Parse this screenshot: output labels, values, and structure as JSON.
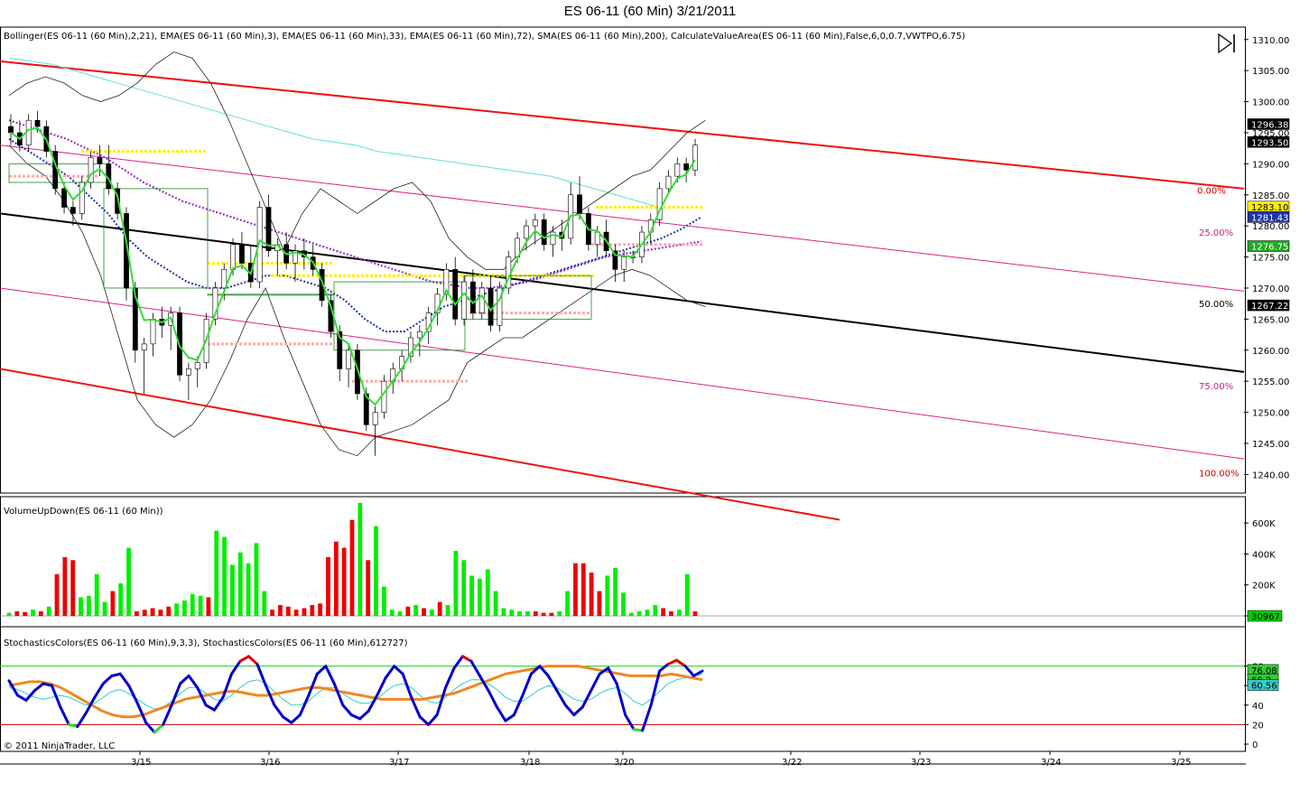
{
  "window": {
    "title": "ES 06-11 (60 Min)  3/21/2011"
  },
  "panels": {
    "price": {
      "indicator_label": "Bollinger(ES 06-11 (60 Min),2,21), EMA(ES 06-11 (60 Min),3), EMA(ES 06-11 (60 Min),33), EMA(ES 06-11 (60 Min),72), SMA(ES 06-11 (60 Min),200), CalculateValueArea(ES 06-11 (60 Min),False,6,0,0.7,VWTPO,6.75)"
    },
    "volume": {
      "indicator_label": "VolumeUpDown(ES 06-11 (60 Min))"
    },
    "stochastics": {
      "indicator_label": "StochasticsColors(ES 06-11 (60 Min),9,3,3), StochasticsColors(ES 06-11 (60 Min),612727)"
    }
  },
  "copyright": "© 2011 NinjaTrader, LLC",
  "colors": {
    "up": "#00ee00",
    "down": "#ee0000",
    "channel": "#ee1111",
    "midline": "#000000",
    "quarter": "#dd2288",
    "bollinger": "#222222",
    "sma200": "#66dddd",
    "ema72": "#9933cc",
    "ema33": "#2233aa",
    "ema3": "#33dd33",
    "value_area": "#ffee00",
    "poc": "#ffaaaa",
    "stoch_k": "#0000cc",
    "stoch_slow": "#ee8822",
    "stoch_d": "#33cccc"
  },
  "chart_data": [
    {
      "type": "candlestick",
      "panel": "price",
      "ylim": [
        1237,
        1312
      ],
      "y_ticks": [
        1310,
        1305,
        1300,
        1295,
        1290,
        1285,
        1280,
        1275,
        1270,
        1265,
        1260,
        1255,
        1250,
        1245,
        1240
      ],
      "x_ticks": [
        "3/15",
        "3/16",
        "3/17",
        "3/18",
        "3/20",
        "3/22",
        "3/23",
        "3/24",
        "3/25"
      ],
      "price_markers": [
        {
          "label": "1296.38",
          "value": 1296.38,
          "color": "#000000"
        },
        {
          "label": "1293.50",
          "value": 1293.5,
          "color": "#000000"
        },
        {
          "label": "1283.10",
          "value": 1283.1,
          "color": "#ffee00"
        },
        {
          "label": "1281.43",
          "value": 1281.43,
          "color": "#2233aa"
        },
        {
          "label": "1276.75",
          "value": 1276.75,
          "color": "#22aa22"
        },
        {
          "label": "1267.22",
          "value": 1267.22,
          "color": "#000000"
        }
      ],
      "channel_labels": [
        {
          "label": "0.00%",
          "value": 1285.8,
          "color": "#cc0000"
        },
        {
          "label": "25.00%",
          "value": 1279.0,
          "color": "#cc2277"
        },
        {
          "label": "50.00%",
          "value": 1267.5,
          "color": "#000000"
        },
        {
          "label": "75.00%",
          "value": 1254.3,
          "color": "#cc2277"
        },
        {
          "label": "100.00%",
          "value": 1240.3,
          "color": "#cc0000"
        }
      ],
      "candles": [
        {
          "o": 1296,
          "h": 1298,
          "l": 1293,
          "c": 1295
        },
        {
          "o": 1295,
          "h": 1297,
          "l": 1292,
          "c": 1293
        },
        {
          "o": 1293,
          "h": 1298,
          "l": 1292,
          "c": 1297
        },
        {
          "o": 1297,
          "h": 1298.5,
          "l": 1295,
          "c": 1296
        },
        {
          "o": 1296,
          "h": 1297,
          "l": 1291,
          "c": 1292
        },
        {
          "o": 1292,
          "h": 1293,
          "l": 1285,
          "c": 1286
        },
        {
          "o": 1286,
          "h": 1287,
          "l": 1282,
          "c": 1283
        },
        {
          "o": 1283,
          "h": 1284,
          "l": 1280,
          "c": 1282
        },
        {
          "o": 1282,
          "h": 1288,
          "l": 1281,
          "c": 1287
        },
        {
          "o": 1287,
          "h": 1292,
          "l": 1286,
          "c": 1291
        },
        {
          "o": 1291,
          "h": 1293,
          "l": 1288,
          "c": 1290
        },
        {
          "o": 1290,
          "h": 1293,
          "l": 1285,
          "c": 1286
        },
        {
          "o": 1286,
          "h": 1287,
          "l": 1281,
          "c": 1282
        },
        {
          "o": 1282,
          "h": 1283,
          "l": 1268,
          "c": 1270
        },
        {
          "o": 1270,
          "h": 1271,
          "l": 1258,
          "c": 1260
        },
        {
          "o": 1260,
          "h": 1262,
          "l": 1253,
          "c": 1261
        },
        {
          "o": 1261,
          "h": 1266,
          "l": 1259,
          "c": 1265
        },
        {
          "o": 1265,
          "h": 1267,
          "l": 1262,
          "c": 1264
        },
        {
          "o": 1264,
          "h": 1267,
          "l": 1260,
          "c": 1266
        },
        {
          "o": 1266,
          "h": 1267,
          "l": 1255,
          "c": 1256
        },
        {
          "o": 1256,
          "h": 1258,
          "l": 1252,
          "c": 1257
        },
        {
          "o": 1257,
          "h": 1259,
          "l": 1254,
          "c": 1258
        },
        {
          "o": 1258,
          "h": 1266,
          "l": 1257,
          "c": 1265
        },
        {
          "o": 1265,
          "h": 1271,
          "l": 1264,
          "c": 1270
        },
        {
          "o": 1270,
          "h": 1274,
          "l": 1268,
          "c": 1273
        },
        {
          "o": 1273,
          "h": 1278,
          "l": 1272,
          "c": 1277
        },
        {
          "o": 1277,
          "h": 1279,
          "l": 1273,
          "c": 1274
        },
        {
          "o": 1274,
          "h": 1277,
          "l": 1270,
          "c": 1271
        },
        {
          "o": 1271,
          "h": 1284,
          "l": 1270,
          "c": 1283
        },
        {
          "o": 1283,
          "h": 1285,
          "l": 1275,
          "c": 1276
        },
        {
          "o": 1276,
          "h": 1278,
          "l": 1272,
          "c": 1277
        },
        {
          "o": 1277,
          "h": 1279,
          "l": 1273,
          "c": 1274
        },
        {
          "o": 1274,
          "h": 1277,
          "l": 1271,
          "c": 1276
        },
        {
          "o": 1276,
          "h": 1278,
          "l": 1273,
          "c": 1275
        },
        {
          "o": 1275,
          "h": 1277,
          "l": 1272,
          "c": 1273
        },
        {
          "o": 1273,
          "h": 1274,
          "l": 1267,
          "c": 1268
        },
        {
          "o": 1268,
          "h": 1269,
          "l": 1262,
          "c": 1263
        },
        {
          "o": 1263,
          "h": 1264,
          "l": 1255,
          "c": 1257
        },
        {
          "o": 1257,
          "h": 1261,
          "l": 1254,
          "c": 1260
        },
        {
          "o": 1260,
          "h": 1261,
          "l": 1252,
          "c": 1253
        },
        {
          "o": 1253,
          "h": 1254,
          "l": 1247,
          "c": 1248
        },
        {
          "o": 1248,
          "h": 1251,
          "l": 1243,
          "c": 1250
        },
        {
          "o": 1250,
          "h": 1256,
          "l": 1249,
          "c": 1255
        },
        {
          "o": 1255,
          "h": 1258,
          "l": 1253,
          "c": 1257
        },
        {
          "o": 1257,
          "h": 1260,
          "l": 1255,
          "c": 1259
        },
        {
          "o": 1259,
          "h": 1263,
          "l": 1258,
          "c": 1262
        },
        {
          "o": 1262,
          "h": 1264,
          "l": 1259,
          "c": 1263
        },
        {
          "o": 1263,
          "h": 1267,
          "l": 1261,
          "c": 1266
        },
        {
          "o": 1266,
          "h": 1270,
          "l": 1264,
          "c": 1269
        },
        {
          "o": 1269,
          "h": 1274,
          "l": 1268,
          "c": 1273
        },
        {
          "o": 1273,
          "h": 1275,
          "l": 1264,
          "c": 1265
        },
        {
          "o": 1265,
          "h": 1272,
          "l": 1264,
          "c": 1271
        },
        {
          "o": 1271,
          "h": 1273,
          "l": 1265,
          "c": 1266
        },
        {
          "o": 1266,
          "h": 1271,
          "l": 1265,
          "c": 1270
        },
        {
          "o": 1270,
          "h": 1272,
          "l": 1263,
          "c": 1264
        },
        {
          "o": 1264,
          "h": 1271,
          "l": 1263,
          "c": 1270
        },
        {
          "o": 1270,
          "h": 1276,
          "l": 1269,
          "c": 1275
        },
        {
          "o": 1275,
          "h": 1279,
          "l": 1274,
          "c": 1278
        },
        {
          "o": 1278,
          "h": 1281,
          "l": 1276,
          "c": 1280
        },
        {
          "o": 1280,
          "h": 1282,
          "l": 1277,
          "c": 1281
        },
        {
          "o": 1281,
          "h": 1282,
          "l": 1276,
          "c": 1277
        },
        {
          "o": 1277,
          "h": 1280,
          "l": 1275,
          "c": 1279
        },
        {
          "o": 1279,
          "h": 1281,
          "l": 1276,
          "c": 1278
        },
        {
          "o": 1278,
          "h": 1287,
          "l": 1277,
          "c": 1285
        },
        {
          "o": 1285,
          "h": 1288,
          "l": 1281,
          "c": 1282
        },
        {
          "o": 1282,
          "h": 1283,
          "l": 1276,
          "c": 1277
        },
        {
          "o": 1277,
          "h": 1280,
          "l": 1275,
          "c": 1279
        },
        {
          "o": 1279,
          "h": 1281,
          "l": 1275,
          "c": 1276
        },
        {
          "o": 1276,
          "h": 1277,
          "l": 1271,
          "c": 1273
        },
        {
          "o": 1273,
          "h": 1276,
          "l": 1271,
          "c": 1275
        },
        {
          "o": 1275,
          "h": 1276,
          "l": 1274,
          "c": 1275
        },
        {
          "o": 1275,
          "h": 1280,
          "l": 1274,
          "c": 1279
        },
        {
          "o": 1279,
          "h": 1282,
          "l": 1277,
          "c": 1281
        },
        {
          "o": 1281,
          "h": 1287,
          "l": 1280,
          "c": 1286
        },
        {
          "o": 1286,
          "h": 1289,
          "l": 1285,
          "c": 1288
        },
        {
          "o": 1288,
          "h": 1291,
          "l": 1287,
          "c": 1290
        },
        {
          "o": 1290,
          "h": 1291,
          "l": 1287,
          "c": 1289
        },
        {
          "o": 1289,
          "h": 1294,
          "l": 1288,
          "c": 1293
        }
      ]
    },
    {
      "type": "bar",
      "panel": "volume",
      "ylim": [
        0,
        700000
      ],
      "y_ticks": [
        600000,
        400000,
        200000,
        0
      ],
      "y_tick_labels": [
        "600K",
        "400K",
        "200K",
        "0"
      ],
      "last_value_label": "30967",
      "values": [
        20000,
        30000,
        25000,
        40000,
        30000,
        60000,
        270000,
        380000,
        360000,
        120000,
        130000,
        270000,
        90000,
        160000,
        210000,
        440000,
        30000,
        40000,
        50000,
        40000,
        60000,
        80000,
        100000,
        140000,
        130000,
        120000,
        550000,
        510000,
        330000,
        410000,
        340000,
        470000,
        160000,
        40000,
        70000,
        60000,
        40000,
        50000,
        70000,
        80000,
        380000,
        480000,
        440000,
        620000,
        730000,
        360000,
        580000,
        190000,
        40000,
        30000,
        60000,
        70000,
        50000,
        40000,
        90000,
        70000,
        420000,
        360000,
        260000,
        240000,
        300000,
        160000,
        50000,
        40000,
        30000,
        30000,
        30000,
        20000,
        20000,
        30000,
        160000,
        340000,
        340000,
        280000,
        160000,
        260000,
        310000,
        150000,
        20000,
        30000,
        40000,
        70000,
        50000,
        30000,
        40000,
        270000,
        30000
      ],
      "directions": [
        "up",
        "down",
        "down",
        "up",
        "down",
        "up",
        "down",
        "down",
        "down",
        "up",
        "up",
        "up",
        "up",
        "down",
        "up",
        "up",
        "down",
        "down",
        "down",
        "down",
        "down",
        "up",
        "up",
        "up",
        "up",
        "down",
        "up",
        "up",
        "up",
        "up",
        "up",
        "up",
        "up",
        "down",
        "down",
        "down",
        "down",
        "down",
        "down",
        "down",
        "down",
        "down",
        "down",
        "down",
        "up",
        "down",
        "up",
        "up",
        "up",
        "up",
        "down",
        "up",
        "down",
        "up",
        "down",
        "up",
        "up",
        "up",
        "up",
        "up",
        "up",
        "up",
        "up",
        "up",
        "up",
        "up",
        "down",
        "down",
        "down",
        "up",
        "up",
        "down",
        "down",
        "down",
        "down",
        "up",
        "up",
        "up",
        "up",
        "up",
        "up",
        "up",
        "down",
        "down",
        "up",
        "up",
        "down"
      ]
    },
    {
      "type": "line",
      "panel": "stochastics",
      "ylim": [
        0,
        100
      ],
      "y_ticks": [
        80,
        60,
        40,
        20,
        0
      ],
      "reference_lines": [
        80,
        20
      ],
      "markers": [
        {
          "label": "76.08",
          "value": 76.08,
          "color": "#33cc33"
        },
        {
          "label": "66.2",
          "value": 66.2,
          "color": "#33cc33"
        },
        {
          "label": "60.56",
          "value": 60.56,
          "color": "#33cccc"
        }
      ],
      "series": [
        {
          "values": [
            65,
            50,
            45,
            55,
            62,
            60,
            38,
            20,
            18,
            32,
            48,
            62,
            70,
            72,
            60,
            42,
            22,
            12,
            20,
            40,
            62,
            70,
            58,
            40,
            35,
            48,
            72,
            85,
            90,
            82,
            60,
            40,
            28,
            22,
            30,
            50,
            72,
            80,
            62,
            40,
            30,
            26,
            34,
            50,
            68,
            80,
            72,
            48,
            28,
            20,
            30,
            58,
            78,
            90,
            85,
            70,
            55,
            38,
            24,
            30,
            50,
            72,
            80,
            70,
            55,
            40,
            30,
            38,
            55,
            72,
            78,
            62,
            30,
            15,
            14,
            40,
            75,
            82,
            86,
            80,
            70,
            75
          ]
        },
        {
          "values": [
            60,
            62,
            64,
            64,
            62,
            58,
            52,
            46,
            40,
            34,
            30,
            28,
            28,
            30,
            34,
            38,
            42,
            46,
            48,
            50,
            52,
            54,
            54,
            52,
            50,
            50,
            52,
            54,
            56,
            58,
            58,
            56,
            54,
            52,
            50,
            48,
            46,
            46,
            46,
            46,
            46,
            48,
            50,
            52,
            56,
            60,
            64,
            68,
            72,
            74,
            76,
            78,
            80,
            80,
            80,
            80,
            78,
            76,
            74,
            72,
            70,
            70,
            70,
            70,
            72,
            70,
            68,
            66
          ]
        },
        {
          "values": [
            58,
            56,
            52,
            48,
            46,
            48,
            50,
            48,
            44,
            40,
            42,
            48,
            54,
            56,
            52,
            46,
            40,
            36,
            38,
            44,
            52,
            58,
            58,
            52,
            46,
            44,
            50,
            58,
            64,
            66,
            62,
            54,
            46,
            40,
            40,
            44,
            52,
            58,
            58,
            52,
            46,
            42,
            42,
            46,
            54,
            60,
            62,
            58,
            50,
            44,
            42,
            48,
            56,
            62,
            66,
            66,
            62,
            56,
            48,
            44,
            44,
            50,
            56,
            60,
            58,
            52,
            46,
            44,
            46,
            52,
            56,
            58,
            52,
            44,
            40,
            46,
            54,
            62,
            66,
            68,
            70,
            72
          ]
        }
      ]
    }
  ]
}
